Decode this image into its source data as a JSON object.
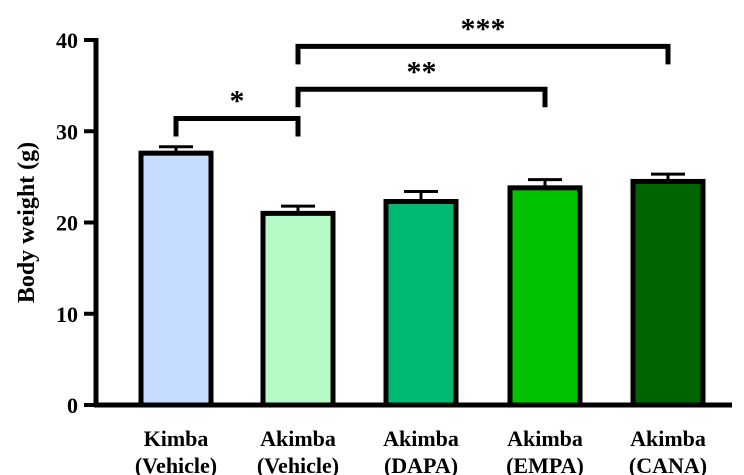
{
  "chart_data": {
    "type": "bar",
    "title": "",
    "xlabel": "",
    "ylabel": "Body weight (g)",
    "ylim": [
      0,
      40
    ],
    "yticks": [
      0,
      10,
      20,
      30,
      40
    ],
    "categories": [
      [
        "Kimba",
        "(Vehicle)"
      ],
      [
        "Akimba",
        "(Vehicle)"
      ],
      [
        "Akimba",
        "(DAPA)"
      ],
      [
        "Akimba",
        "(EMPA)"
      ],
      [
        "Akimba",
        "(CANA)"
      ]
    ],
    "values": [
      27.6,
      21.0,
      22.3,
      23.8,
      24.5
    ],
    "errors": [
      0.7,
      0.8,
      1.1,
      0.9,
      0.8
    ],
    "colors": [
      "#c6ddff",
      "#b6fbc7",
      "#00ba73",
      "#00c200",
      "#006400"
    ],
    "bar_outline_color": "#000000",
    "significance": [
      {
        "from": 0,
        "to": 1,
        "y": 31.4,
        "label": "*"
      },
      {
        "from": 1,
        "to": 3,
        "y": 34.6,
        "label": "**"
      },
      {
        "from": 1,
        "to": 4,
        "y": 39.3,
        "label": "***"
      }
    ],
    "grid": false,
    "legend": "none"
  }
}
